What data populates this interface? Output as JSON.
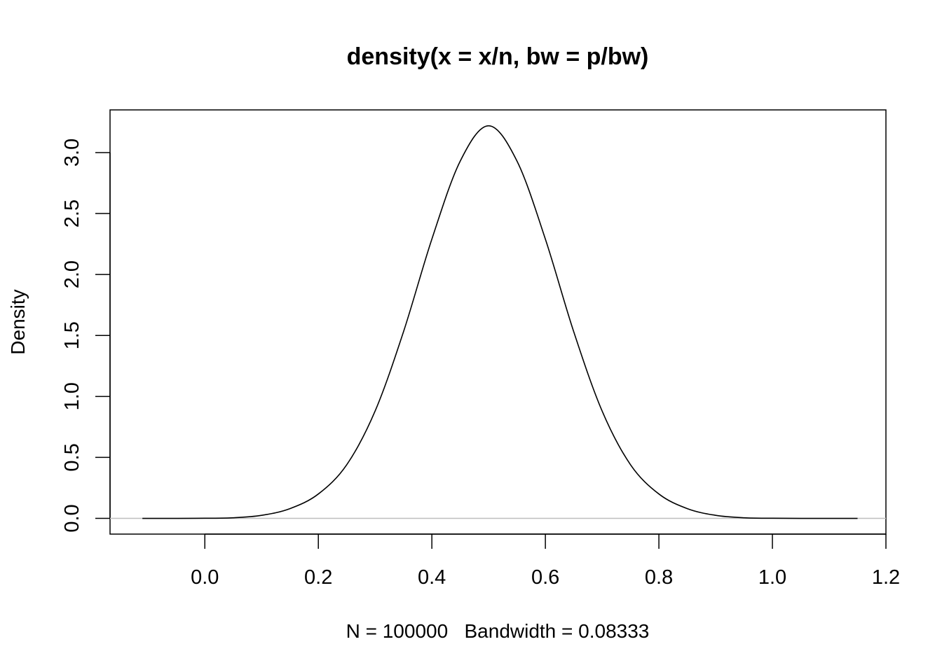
{
  "chart_data": {
    "type": "line",
    "title": "density(x = x/n, bw = p/bw)",
    "xlabel": "N = 100000   Bandwidth = 0.08333",
    "ylabel": "Density",
    "xlim": [
      -0.167,
      1.2
    ],
    "ylim": [
      -0.129,
      3.35
    ],
    "x_ticks": [
      0.0,
      0.2,
      0.4,
      0.6,
      0.8,
      1.0,
      1.2
    ],
    "x_tick_labels": [
      "0.0",
      "0.2",
      "0.4",
      "0.6",
      "0.8",
      "1.0",
      "1.2"
    ],
    "y_ticks": [
      0.0,
      0.5,
      1.0,
      1.5,
      2.0,
      2.5,
      3.0
    ],
    "y_tick_labels": [
      "0.0",
      "0.5",
      "1.0",
      "1.5",
      "2.0",
      "2.5",
      "3.0"
    ],
    "baseline": 0,
    "series": [
      {
        "x": [
          -0.11,
          -0.05,
          0.0,
          0.05,
          0.1,
          0.15,
          0.2,
          0.25,
          0.3,
          0.35,
          0.4,
          0.45,
          0.5,
          0.55,
          0.6,
          0.65,
          0.7,
          0.75,
          0.8,
          0.85,
          0.9,
          0.95,
          1.0,
          1.05,
          1.1,
          1.15
        ],
        "y": [
          0.0,
          0.0,
          0.001,
          0.005,
          0.025,
          0.08,
          0.2,
          0.44,
          0.88,
          1.53,
          2.29,
          2.93,
          3.22,
          2.93,
          2.29,
          1.53,
          0.88,
          0.44,
          0.2,
          0.08,
          0.025,
          0.005,
          0.001,
          0.0,
          0.0,
          0.0
        ]
      }
    ],
    "colors": {
      "line": "#000000",
      "baseline": "#bebebe",
      "axis": "#000000"
    }
  }
}
